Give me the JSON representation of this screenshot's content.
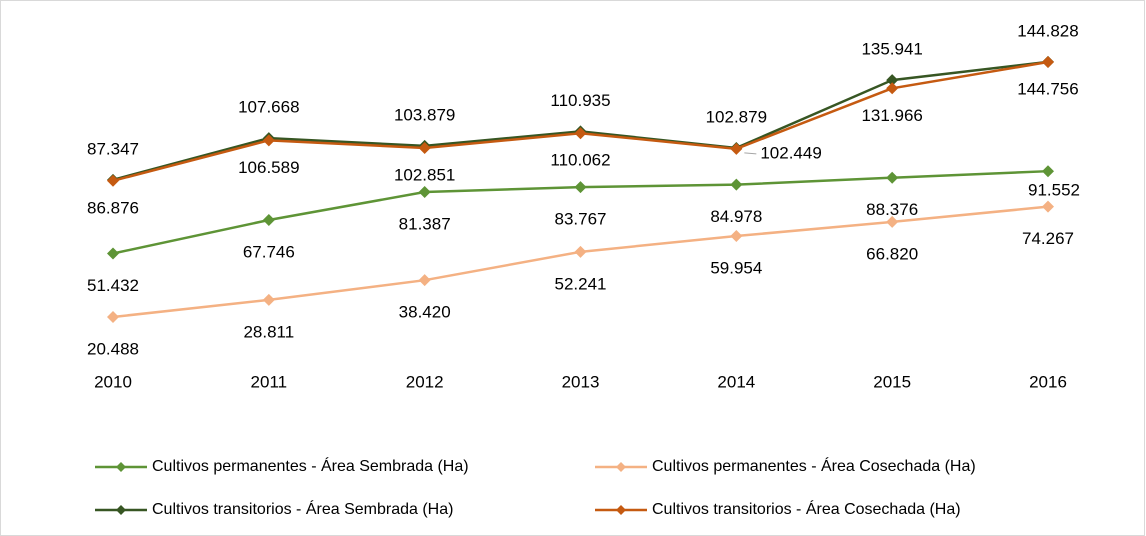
{
  "chart_data": {
    "type": "line",
    "categories": [
      "2010",
      "2011",
      "2012",
      "2013",
      "2014",
      "2015",
      "2016"
    ],
    "ylim": [
      0,
      175000
    ],
    "series": [
      {
        "name": "Cultivos permanentes - Área Sembrada (Ha)",
        "color": "#5e9436",
        "values": [
          51432,
          67746,
          81387,
          83767,
          84978,
          88376,
          91552
        ],
        "value_labels": [
          "51.432",
          "67.746",
          "81.387",
          "83.767",
          "84.978",
          "88.376",
          "91.552"
        ]
      },
      {
        "name": "Cultivos permanentes - Área Cosechada (Ha)",
        "color": "#f4b183",
        "values": [
          20488,
          28811,
          38420,
          52241,
          59954,
          66820,
          74267
        ],
        "value_labels": [
          "20.488",
          "28.811",
          "38.420",
          "52.241",
          "59.954",
          "66.820",
          "74.267"
        ]
      },
      {
        "name": "Cultivos transitorios - Área Sembrada (Ha)",
        "color": "#375623",
        "values": [
          87347,
          107668,
          103879,
          110935,
          102879,
          135941,
          144828
        ],
        "value_labels": [
          "87.347",
          "107.668",
          "103.879",
          "110.935",
          "102.879",
          "135.941",
          "144.828"
        ]
      },
      {
        "name": "Cultivos transitorios - Área Cosechada (Ha)",
        "color": "#c55a11",
        "values": [
          86876,
          106589,
          102851,
          110062,
          102449,
          131966,
          144756
        ],
        "value_labels": [
          "86.876",
          "106.589",
          "102.851",
          "110.062",
          "102.449",
          "131.966",
          "144.756"
        ]
      }
    ]
  }
}
